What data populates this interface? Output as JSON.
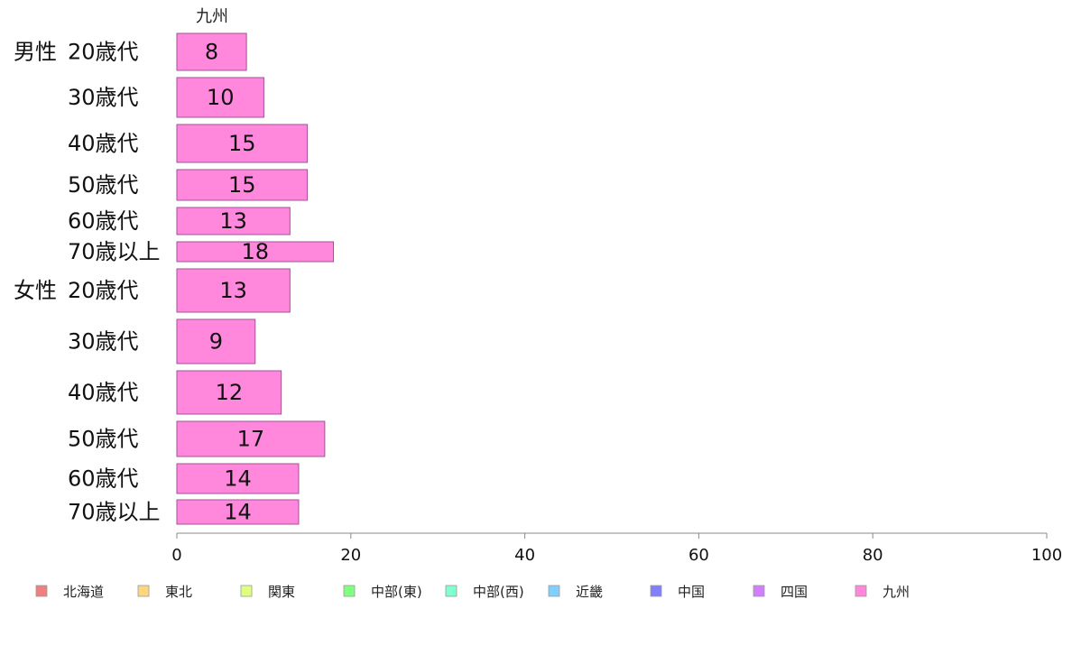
{
  "chart_data": {
    "type": "bar",
    "orientation": "horizontal",
    "top_label": "九州",
    "xlim": [
      0,
      100
    ],
    "x_ticks": [
      "0",
      "20",
      "40",
      "60",
      "80",
      "100"
    ],
    "grid": false,
    "legend_position": "bottom",
    "groups": [
      {
        "name": "男性",
        "categories": [
          "20歳代",
          "30歳代",
          "40歳代",
          "50歳代",
          "60歳代",
          "70歳以上"
        ],
        "values": [
          8,
          10,
          15,
          15,
          13,
          18
        ]
      },
      {
        "name": "女性",
        "categories": [
          "20歳代",
          "30歳代",
          "40歳代",
          "50歳代",
          "60歳代",
          "70歳以上"
        ],
        "values": [
          13,
          9,
          12,
          17,
          14,
          14
        ]
      }
    ],
    "series": [
      {
        "name": "北海道",
        "color": "#f08080"
      },
      {
        "name": "東北",
        "color": "#ffd580"
      },
      {
        "name": "関東",
        "color": "#e0ff80"
      },
      {
        "name": "中部(東)",
        "color": "#80ff80"
      },
      {
        "name": "中部(西)",
        "color": "#80ffd0"
      },
      {
        "name": "近畿",
        "color": "#80d0ff"
      },
      {
        "name": "中国",
        "color": "#8080ff"
      },
      {
        "name": "四国",
        "color": "#d080ff"
      },
      {
        "name": "九州",
        "color": "#ff88dd"
      }
    ]
  }
}
